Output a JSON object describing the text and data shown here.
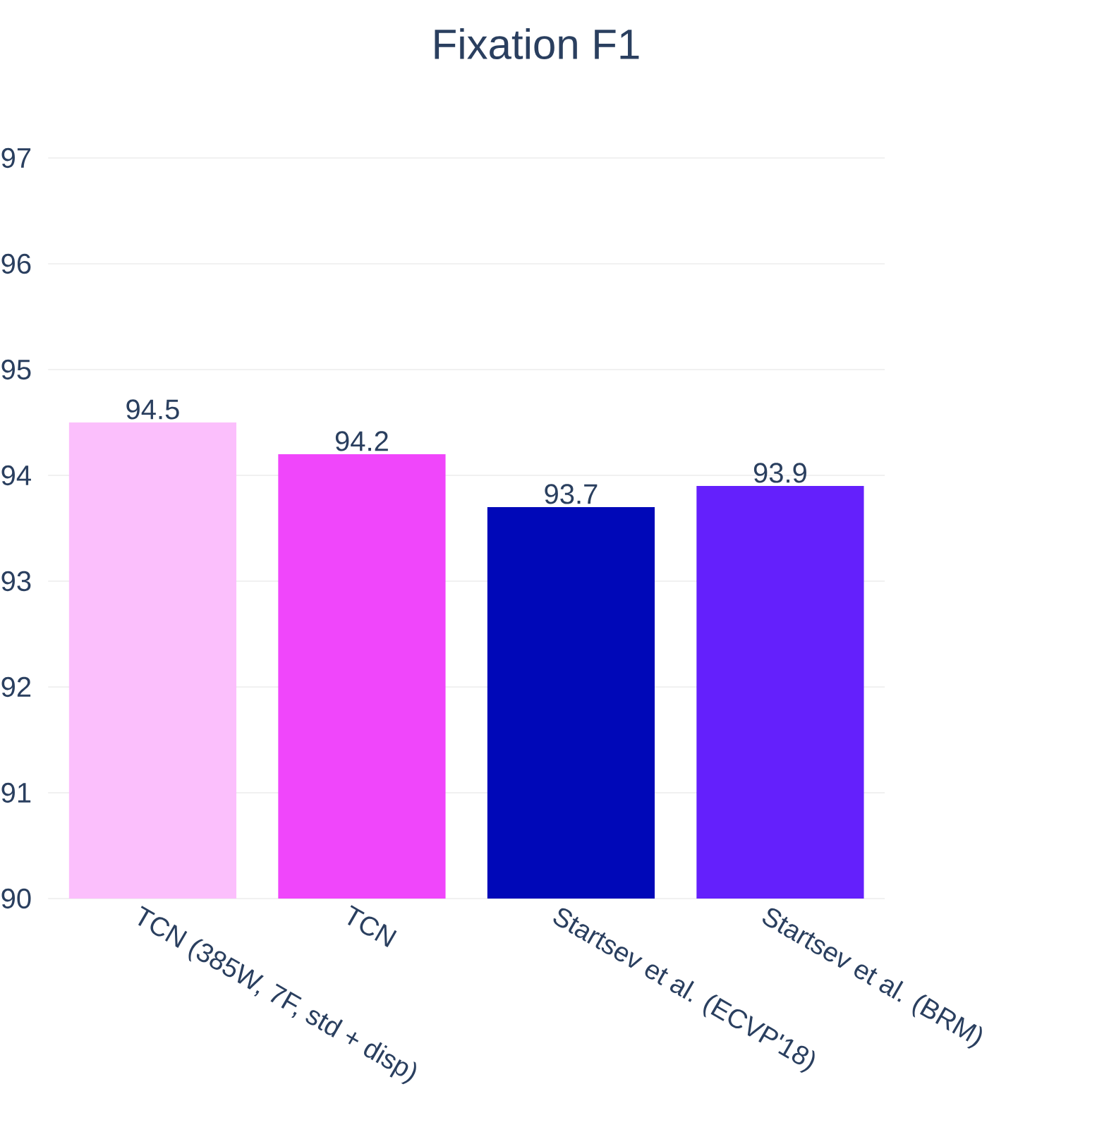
{
  "chart_data": {
    "type": "bar",
    "title": "Fixation F1",
    "categories": [
      "TCN (385W, 7F, std + disp)",
      "TCN",
      "Startsev et al. (ECVP'18)",
      "Startsev et al. (BRM)"
    ],
    "values": [
      94.5,
      94.2,
      93.7,
      93.9
    ],
    "colors": [
      "#fbbffc",
      "#f046fb",
      "#0008b8",
      "#6420fc"
    ],
    "ylim": [
      90,
      97
    ],
    "yticks": [
      90,
      91,
      92,
      93,
      94,
      95,
      96,
      97
    ],
    "grid": "y",
    "data_labels": true
  }
}
